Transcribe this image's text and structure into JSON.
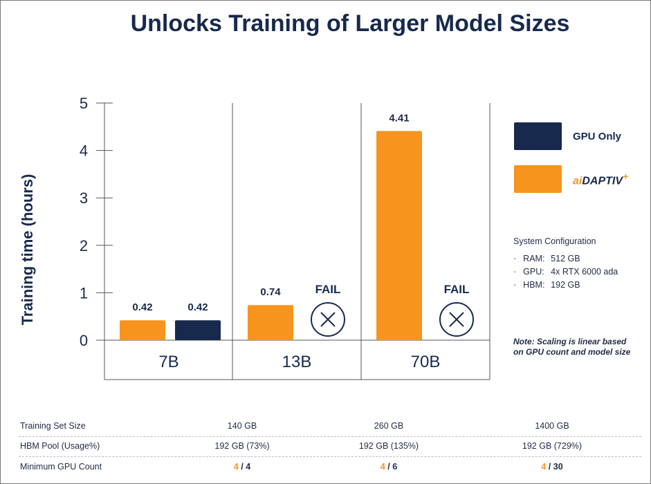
{
  "title": "Unlocks Training of Larger Model Sizes",
  "colors": {
    "gpu_only": "#17294d",
    "aidaptiv": "#f7941d"
  },
  "legend": [
    {
      "label": "GPU Only",
      "color": "#17294d"
    },
    {
      "label": "aiDAPTIV+",
      "color": "#f7941d",
      "logo": true
    }
  ],
  "system_config": {
    "heading": "System Configuration",
    "items": [
      {
        "key": "RAM:",
        "value": "512 GB"
      },
      {
        "key": "GPU:",
        "value": "4x RTX 6000 ada"
      },
      {
        "key": "HBM:",
        "value": "192 GB"
      }
    ]
  },
  "note": "Note: Scaling is linear based on GPU count and model size",
  "chart_data": {
    "type": "bar",
    "title": "Unlocks Training of Larger Model Sizes",
    "ylabel": "Training time (hours)",
    "ylim": [
      0,
      5
    ],
    "yticks": [
      "0",
      "1",
      "2",
      "3",
      "4",
      "5"
    ],
    "categories": [
      "7B",
      "13B",
      "70B"
    ],
    "series": [
      {
        "name": "aiDAPTIV+",
        "values": [
          0.42,
          0.74,
          4.41
        ],
        "labels": [
          "0.42",
          "0.74",
          "4.41"
        ]
      },
      {
        "name": "GPU Only",
        "values": [
          0.42,
          null,
          null
        ],
        "labels": [
          "0.42",
          "FAIL",
          "FAIL"
        ]
      }
    ],
    "legend_position": "right",
    "grid": false
  },
  "table": {
    "rows": [
      {
        "label": "Training Set Size",
        "cells": [
          "140 GB",
          "260 GB",
          "1400 GB"
        ]
      },
      {
        "label": "HBM Pool (Usage%)",
        "cells": [
          "192 GB (73%)",
          "192 GB (135%)",
          "192 GB (729%)"
        ]
      },
      {
        "label": "Minimum GPU Count",
        "cells": [
          {
            "a": "4",
            "b": "4"
          },
          {
            "a": "4",
            "b": "6"
          },
          {
            "a": "4",
            "b": "30"
          }
        ],
        "separator": "/"
      }
    ]
  }
}
